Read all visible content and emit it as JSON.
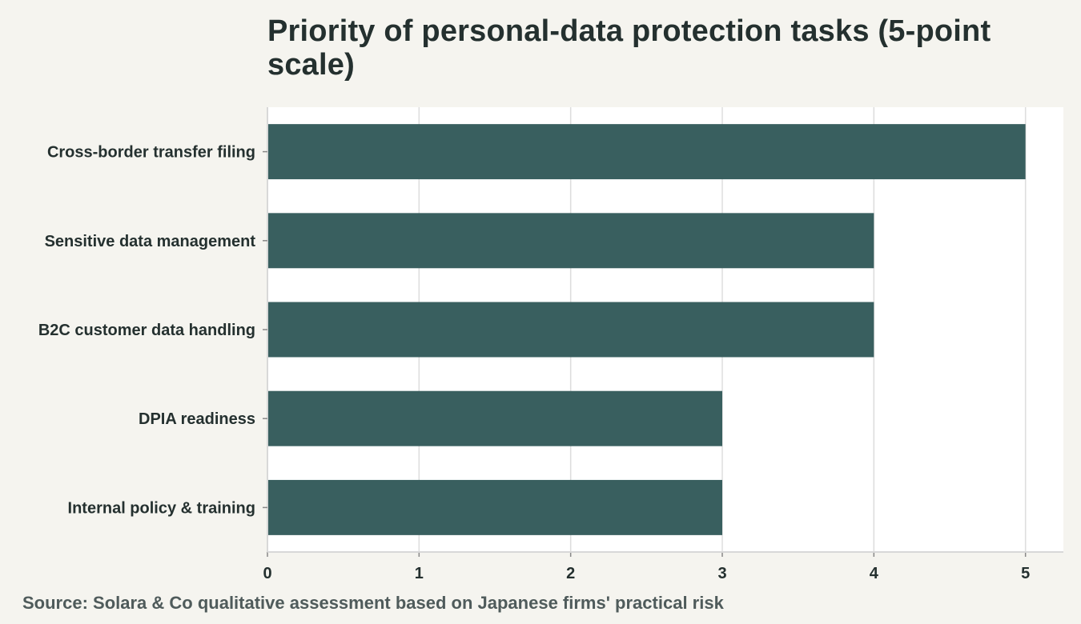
{
  "title": "Priority of personal-data protection tasks (5-point scale)",
  "source": "Source: Solara & Co qualitative assessment based on Japanese firms' practical risk",
  "colors": {
    "background": "#f5f4ef",
    "plot_background": "#ffffff",
    "bar": "#395f5f",
    "grid": "#dddddd",
    "axis": "#d8d8d8",
    "text": "#24302f",
    "source_text": "#4f5b5b"
  },
  "chart_data": {
    "type": "bar",
    "orientation": "horizontal",
    "title": "Priority of personal-data protection tasks (5-point scale)",
    "categories": [
      "Cross-border transfer filing",
      "Sensitive data management",
      "B2C customer data handling",
      "DPIA readiness",
      "Internal policy & training"
    ],
    "values": [
      5,
      4,
      4,
      3,
      3
    ],
    "xlabel": "",
    "ylabel": "",
    "xlim": [
      0,
      5.25
    ],
    "xticks": [
      "0",
      "1",
      "2",
      "3",
      "4",
      "5"
    ],
    "grid": true,
    "legend": "none"
  }
}
